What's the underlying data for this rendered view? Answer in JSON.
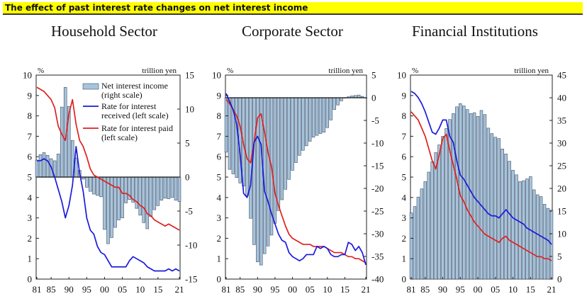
{
  "banner": {
    "title": "The effect of past interest rate changes on net interest income"
  },
  "colors": {
    "bar": "#a8c4dc",
    "bar_edge": "#3d4f66",
    "received": "#1a1adb",
    "paid": "#e02020",
    "banner": "#ffff00"
  },
  "chart_data": [
    {
      "type": "bar+line",
      "title": "Household Sector",
      "left_unit": "%",
      "right_unit": "trillion yen",
      "left_ylim": [
        0,
        10
      ],
      "left_ticks": [
        0,
        1,
        2,
        3,
        4,
        5,
        6,
        7,
        8,
        9,
        10
      ],
      "right_ylim": [
        -15,
        15
      ],
      "right_ticks": [
        -15,
        -10,
        -5,
        0,
        5,
        10,
        15
      ],
      "x_range": [
        1981,
        2021
      ],
      "x_ticks": [
        "81",
        "85",
        "90",
        "95",
        "00",
        "05",
        "10",
        "15",
        "21"
      ],
      "legend": [
        "Net interest income (right scale)",
        "Rate for interest received (left scale)",
        "Rate for interest paid (left scale)"
      ],
      "bars": [
        2.5,
        3.3,
        3.6,
        3.2,
        2.7,
        2.4,
        3.4,
        10.3,
        13.2,
        10.4,
        5.4,
        2.8,
        1.0,
        -0.3,
        -1.5,
        -2.1,
        -2.5,
        -2.7,
        -2.9,
        -7.7,
        -9.8,
        -8.9,
        -7.4,
        -6.3,
        -6.0,
        -3.8,
        -3.3,
        -3.7,
        -4.6,
        -5.6,
        -6.7,
        -7.6,
        -5.8,
        -4.8,
        -4.2,
        -3.4,
        -3.1,
        -3.2,
        -3.0,
        -3.4,
        -3.6
      ],
      "received": [
        5.8,
        5.8,
        5.9,
        5.8,
        5.5,
        5.0,
        4.4,
        3.8,
        3.0,
        3.6,
        4.6,
        6.5,
        5.2,
        4.3,
        3.0,
        2.4,
        2.2,
        1.6,
        1.3,
        1.2,
        0.9,
        0.6,
        0.6,
        0.6,
        0.6,
        0.6,
        0.9,
        1.1,
        1.0,
        0.9,
        0.8,
        0.6,
        0.5,
        0.4,
        0.4,
        0.4,
        0.4,
        0.5,
        0.4,
        0.5,
        0.4
      ],
      "paid": [
        9.4,
        9.3,
        9.2,
        9.0,
        8.8,
        8.4,
        7.5,
        7.1,
        6.8,
        8.1,
        8.8,
        7.6,
        6.8,
        6.5,
        6.0,
        5.4,
        5.1,
        5.0,
        4.9,
        4.8,
        4.7,
        4.6,
        4.5,
        4.5,
        4.2,
        4.2,
        4.1,
        3.9,
        3.8,
        3.6,
        3.5,
        3.2,
        3.1,
        2.9,
        2.8,
        2.7,
        2.6,
        2.7,
        2.6,
        2.5,
        2.4
      ]
    },
    {
      "type": "bar+line",
      "title": "Corporate Sector",
      "left_unit": "%",
      "right_unit": "trillion yen",
      "left_ylim": [
        0,
        10
      ],
      "left_ticks": [
        0,
        1,
        2,
        3,
        4,
        5,
        6,
        7,
        8,
        9,
        10
      ],
      "right_ylim": [
        -40,
        5
      ],
      "right_ticks": [
        -40,
        -35,
        -30,
        -25,
        -20,
        -15,
        -10,
        -5,
        0,
        5
      ],
      "x_range": [
        1981,
        2021
      ],
      "x_ticks": [
        "81",
        "85",
        "90",
        "95",
        "00",
        "05",
        "10",
        "15",
        "21"
      ],
      "bars": [
        -12.0,
        -15.8,
        -16.8,
        -17.6,
        -18.8,
        -19.5,
        -21.6,
        -26.6,
        -32.4,
        -36.2,
        -36.9,
        -34.4,
        -32.7,
        -30.3,
        -27.7,
        -24.9,
        -22.5,
        -20.2,
        -18.0,
        -16.0,
        -14.3,
        -12.7,
        -11.6,
        -10.6,
        -9.6,
        -8.7,
        -8.3,
        -7.9,
        -7.6,
        -6.6,
        -4.9,
        -2.6,
        -1.6,
        -0.7,
        0.0,
        0.2,
        0.4,
        0.5,
        0.6,
        0.3,
        0.0
      ],
      "received": [
        9.1,
        8.7,
        8.3,
        7.6,
        6.1,
        4.2,
        4.0,
        4.6,
        6.7,
        7.0,
        6.6,
        4.3,
        3.8,
        3.2,
        2.7,
        2.2,
        1.9,
        1.8,
        1.3,
        1.1,
        1.0,
        0.9,
        1.0,
        1.2,
        1.2,
        1.2,
        1.6,
        1.5,
        1.6,
        1.5,
        1.2,
        1.1,
        1.1,
        1.2,
        1.2,
        1.8,
        1.7,
        1.4,
        1.6,
        1.3,
        0.7
      ],
      "paid": [
        8.8,
        8.6,
        8.3,
        8.0,
        7.5,
        6.6,
        5.9,
        5.7,
        6.7,
        7.9,
        8.1,
        7.2,
        6.2,
        5.5,
        4.2,
        3.6,
        3.1,
        2.6,
        2.2,
        2.0,
        1.9,
        1.8,
        1.7,
        1.7,
        1.7,
        1.6,
        1.6,
        1.6,
        1.6,
        1.5,
        1.4,
        1.3,
        1.3,
        1.3,
        1.2,
        1.1,
        1.1,
        1.0,
        1.0,
        0.9,
        0.8
      ]
    },
    {
      "type": "bar+line",
      "title": "Financial Institutions",
      "left_unit": "%",
      "right_unit": "trillion yen",
      "left_ylim": [
        0,
        10
      ],
      "left_ticks": [
        0,
        1,
        2,
        3,
        4,
        5,
        6,
        7,
        8,
        9,
        10
      ],
      "right_ylim": [
        0,
        45
      ],
      "right_ticks": [
        0,
        5,
        10,
        15,
        20,
        25,
        30,
        35,
        40,
        45
      ],
      "x_range": [
        1981,
        2021
      ],
      "x_ticks": [
        "81",
        "85",
        "90",
        "95",
        "00",
        "05",
        "10",
        "15",
        "21"
      ],
      "bars": [
        14.6,
        16.0,
        18.1,
        19.9,
        21.5,
        23.6,
        25.9,
        27.9,
        29.6,
        31.5,
        33.2,
        35.2,
        36.5,
        38.0,
        38.7,
        38.2,
        37.4,
        36.5,
        36.7,
        35.9,
        37.2,
        36.3,
        33.3,
        32.1,
        31.3,
        31.0,
        28.7,
        27.6,
        26.0,
        24.0,
        23.0,
        21.5,
        21.7,
        22.1,
        22.6,
        19.7,
        18.6,
        18.2,
        16.5,
        15.6,
        15.2
      ],
      "received": [
        9.2,
        9.1,
        8.9,
        8.6,
        8.2,
        7.7,
        7.2,
        7.1,
        7.4,
        7.8,
        7.8,
        7.0,
        6.7,
        5.8,
        5.1,
        4.9,
        4.6,
        4.3,
        4.0,
        3.8,
        3.6,
        3.4,
        3.2,
        3.1,
        3.1,
        3.0,
        3.2,
        3.4,
        3.2,
        3.0,
        2.9,
        2.8,
        2.7,
        2.5,
        2.4,
        2.3,
        2.2,
        2.1,
        2.0,
        1.9,
        1.7
      ],
      "paid": [
        8.2,
        8.0,
        7.8,
        7.4,
        7.0,
        6.4,
        5.8,
        5.4,
        6.1,
        6.9,
        7.1,
        6.3,
        5.6,
        4.9,
        4.1,
        3.8,
        3.4,
        3.1,
        2.8,
        2.6,
        2.4,
        2.2,
        2.1,
        2.0,
        1.9,
        1.8,
        2.0,
        2.1,
        1.9,
        1.8,
        1.7,
        1.6,
        1.5,
        1.4,
        1.3,
        1.2,
        1.1,
        1.1,
        1.0,
        1.0,
        0.9
      ]
    }
  ]
}
